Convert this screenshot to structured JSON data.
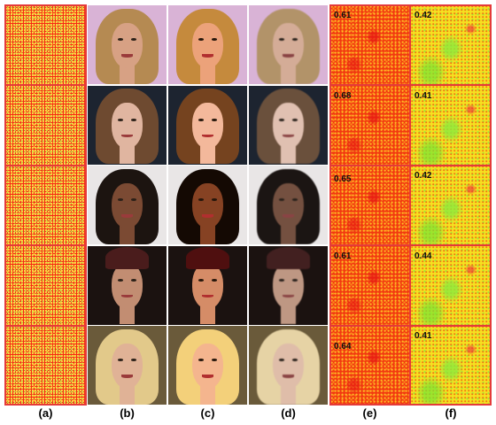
{
  "panel_labels": [
    "(a)",
    "(b)",
    "(c)",
    "(d)",
    "(e)",
    "(f)"
  ],
  "scores_e": [
    "0.61",
    "0.68",
    "0.65",
    "0.61",
    "0.64"
  ],
  "scores_f": [
    "0.42",
    "0.41",
    "0.42",
    "0.44",
    "0.41"
  ],
  "rows": [
    {
      "bg": "#d9b3d6",
      "hair": "#b58a52",
      "skin": "#d7a184",
      "variant": "blonde-curly"
    },
    {
      "bg": "#1d2430",
      "hair": "#6e4a30",
      "skin": "#e0b5a0",
      "variant": "brunette-long"
    },
    {
      "bg": "#e9e6e6",
      "hair": "#1c1410",
      "skin": "#7b4a33",
      "variant": "dark-hair"
    },
    {
      "bg": "#1b1210",
      "hair": "#5a2a26",
      "skin": "#c28d72",
      "variant": "beanie"
    },
    {
      "bg": "#6a5a3a",
      "hair": "#e2c98a",
      "skin": "#e0b296",
      "variant": "platinum"
    }
  ],
  "colors": {
    "noise_base": "#f52a14",
    "heat_green": "#9ae83a",
    "heat_yellow": "#f6e020",
    "border_red": "#e43a3a"
  }
}
